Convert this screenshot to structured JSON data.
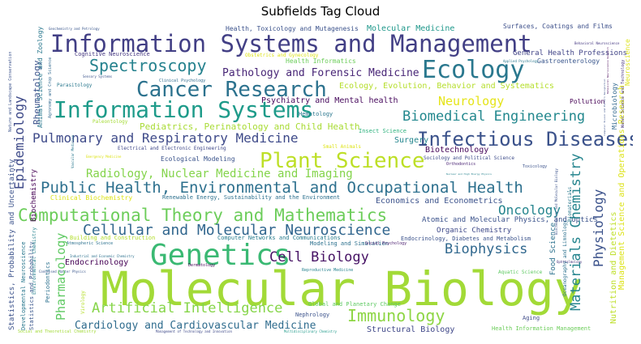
{
  "title": "Subfields Tag Cloud",
  "words": [
    {
      "text": "Molecular Biology",
      "color": "#a2da37"
    },
    {
      "text": "Information Systems and Management",
      "color": "#423f85"
    },
    {
      "text": "Information Systems",
      "color": "#1e9b8a"
    },
    {
      "text": "Genetics",
      "color": "#3ab973"
    },
    {
      "text": "Computational Theory and Mathematics",
      "color": "#6ccd5a"
    },
    {
      "text": "Public Health, Environmental and Occupational Health",
      "color": "#2d708e"
    },
    {
      "text": "Cancer Research",
      "color": "#2c728e"
    },
    {
      "text": "Ecology",
      "color": "#2a788e"
    },
    {
      "text": "Infectious Diseases",
      "color": "#3b528b"
    },
    {
      "text": "Plant Science",
      "color": "#bddf26"
    },
    {
      "text": "Spectroscopy",
      "color": "#26828e"
    },
    {
      "text": "Cellular and Molecular Neuroscience",
      "color": "#31668e"
    },
    {
      "text": "Artificial Intelligence",
      "color": "#86d549"
    },
    {
      "text": "Immunology",
      "color": "#8ed645"
    },
    {
      "text": "Pulmonary and Respiratory Medicine",
      "color": "#3e4a89"
    },
    {
      "text": "Biomedical Engineering",
      "color": "#23888e"
    },
    {
      "text": "Cell Biology",
      "color": "#471365"
    },
    {
      "text": "Biophysics",
      "color": "#31688e"
    },
    {
      "text": "Radiology, Nuclear Medicine and Imaging",
      "color": "#84d44b"
    },
    {
      "text": "Cardiology and Cardiovascular Medicine",
      "color": "#2f6c8e"
    },
    {
      "text": "Oncology",
      "color": "#25858e"
    },
    {
      "text": "Neurology",
      "color": "#e5e419"
    },
    {
      "text": "Pathology and Forensic Medicine",
      "color": "#482677"
    },
    {
      "text": "Pediatrics, Perinatology and Child Health",
      "color": "#a8db34"
    },
    {
      "text": "Endocrinology",
      "color": "#440154"
    },
    {
      "text": "Molecular Medicine",
      "color": "#1f988b"
    },
    {
      "text": "Ecology, Evolution, Behavior and Systematics",
      "color": "#b5de2b"
    },
    {
      "text": "Psychiatry and Mental health",
      "color": "#46085c"
    },
    {
      "text": "Economics and Econometrics",
      "color": "#3b528b"
    },
    {
      "text": "Surgery",
      "color": "#24868e"
    },
    {
      "text": "Biotechnology",
      "color": "#450559"
    },
    {
      "text": "Atomic and Molecular Physics, and Optics",
      "color": "#3b528b"
    },
    {
      "text": "Organic Chemistry",
      "color": "#3e4989"
    },
    {
      "text": "Structural Biology",
      "color": "#3f4788"
    },
    {
      "text": "General Health Professions",
      "color": "#414487"
    },
    {
      "text": "Health, Toxicology and Mutagenesis",
      "color": "#3b528b"
    },
    {
      "text": "Surfaces, Coatings and Films",
      "color": "#3c4f8a"
    },
    {
      "text": "Health Informatics",
      "color": "#6ccd5a"
    },
    {
      "text": "Gastroenterology",
      "color": "#39568c"
    },
    {
      "text": "Pollution",
      "color": "#440154"
    },
    {
      "text": "Hematology",
      "color": "#2a778e"
    },
    {
      "text": "Insect Science",
      "color": "#2db27d"
    },
    {
      "text": "Ecological Modeling",
      "color": "#3a538b"
    },
    {
      "text": "Clinical Biochemistry",
      "color": "#dde318"
    },
    {
      "text": "Renewable Energy, Sustainability and the Environment",
      "color": "#2d708e"
    },
    {
      "text": "Building and Construction",
      "color": "#b2dd2d"
    },
    {
      "text": "Computer Networks and Communications",
      "color": "#287c8e"
    },
    {
      "text": "Modeling and Simulation",
      "color": "#2c718e"
    },
    {
      "text": "Endocrinology, Diabetes and Metabolism",
      "color": "#3b528b"
    },
    {
      "text": "Electrical and Electronic Engineering",
      "color": "#3f4788"
    },
    {
      "text": "Sociology and Political Science",
      "color": "#3e4c8a"
    },
    {
      "text": "Global and Planetary Change",
      "color": "#5ec962"
    },
    {
      "text": "Nephrology",
      "color": "#3b528b"
    },
    {
      "text": "Aging",
      "color": "#3e4989"
    },
    {
      "text": "Health Information Management",
      "color": "#6ccd5a"
    },
    {
      "text": "Cognitive Neuroscience",
      "color": "#453781"
    },
    {
      "text": "Parasitology",
      "color": "#2a788e"
    },
    {
      "text": "Paleontology",
      "color": "#a5db36"
    },
    {
      "text": "Clinical Psychology",
      "color": "#2f6b8e"
    },
    {
      "text": "Obstetrics and Gynecology",
      "color": "#dde318"
    },
    {
      "text": "Small Animals",
      "color": "#dde318"
    },
    {
      "text": "Toxicology",
      "color": "#3b528b"
    },
    {
      "text": "Social Psychology",
      "color": "#481a6c"
    },
    {
      "text": "Orthodontics",
      "color": "#482173"
    },
    {
      "text": "Dermatology",
      "color": "#440154"
    },
    {
      "text": "Reproductive Medicine",
      "color": "#26828e"
    },
    {
      "text": "Aquatic Science",
      "color": "#5ec962"
    },
    {
      "text": "Ophthalmology",
      "color": "#46337e"
    },
    {
      "text": "Atmospheric Science",
      "color": "#2c718e"
    },
    {
      "text": "Sensory Systems",
      "color": "#3b528b"
    },
    {
      "text": "Applied Psychology",
      "color": "#2a788e"
    },
    {
      "text": "Emergency Medicine",
      "color": "#dde318"
    },
    {
      "text": "Condensed Matter Physics",
      "color": "#39568c"
    },
    {
      "text": "Social and Theoretical Chemistry",
      "color": "#a2da37"
    },
    {
      "text": "Management of Technology and Innovation",
      "color": "#3e4989"
    },
    {
      "text": "Multidisciplinary Chemistry",
      "color": "#1f9a8a"
    },
    {
      "text": "Oceanography and Limnology",
      "color": "#2c718e"
    },
    {
      "text": "Biochemistry and Molecular Biology",
      "color": "#3b528b"
    },
    {
      "text": "Behavioral Neuroscience",
      "color": "#453882"
    },
    {
      "text": "Geochemistry and Petrology",
      "color": "#39568c"
    },
    {
      "text": "Nuclear and High Energy Physics",
      "color": "#26828e"
    },
    {
      "text": "Vascular Medicine",
      "color": "#2a788e"
    },
    {
      "text": "Industrial and Economic Chemistry",
      "color": "#2c718e"
    },
    {
      "text": "Epidemiology",
      "color": "#3e4a89"
    },
    {
      "text": "Rheumatology",
      "color": "#3b528b"
    },
    {
      "text": "Animal Science and Zoology",
      "color": "#2a788e"
    },
    {
      "text": "Agronomy and Crop Science",
      "color": "#31688e"
    },
    {
      "text": "Nature and Landscape Conservation",
      "color": "#3b528b"
    },
    {
      "text": "Biochemistry",
      "color": "#440154"
    },
    {
      "text": "Statistics, Probability and Uncertainty",
      "color": "#3b528b"
    },
    {
      "text": "Developmental Neuroscience",
      "color": "#2a788e"
    },
    {
      "text": "Statistics and Probability",
      "color": "#39568c"
    },
    {
      "text": "Environmental Chemistry",
      "color": "#26828e"
    },
    {
      "text": "Pharmacology",
      "color": "#5ec962"
    },
    {
      "text": "Periodontics",
      "color": "#2c718e"
    },
    {
      "text": "Virology",
      "color": "#b5de2b"
    },
    {
      "text": "Materials Chemistry",
      "color": "#25858e"
    },
    {
      "text": "Physiology",
      "color": "#3b528b"
    },
    {
      "text": "Food Science",
      "color": "#2c718e"
    },
    {
      "text": "Biomaterials",
      "color": "#2a788e"
    },
    {
      "text": "Nutrition and Dietetics",
      "color": "#bddf26"
    },
    {
      "text": "Management Science and Operations Research",
      "color": "#dde318"
    },
    {
      "text": "Microbiology",
      "color": "#31688e"
    },
    {
      "text": "Water Science and Technology",
      "color": "#46337e"
    },
    {
      "text": "Computer Vision and Pattern Recognition",
      "color": "#3b528b"
    },
    {
      "text": "Behavioral Neuroscience Research",
      "color": "#440154"
    },
    {
      "text": "Neuroscience",
      "color": "#dde318"
    }
  ]
}
